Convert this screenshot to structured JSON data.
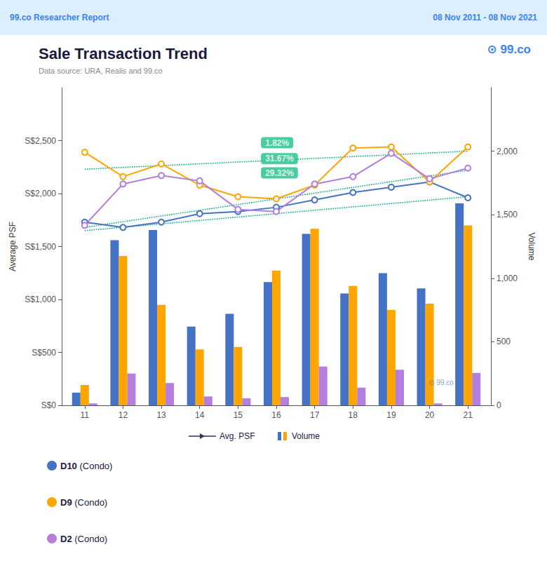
{
  "chart_data": {
    "type": "line",
    "header_left": "99.co Researcher Report",
    "header_right": "08 Nov 2011 - 08 Nov 2021",
    "header_color": "#ddeeff",
    "title": "Sale Transaction Trend",
    "subtitle": "Data source: URA, Realis and 99.co",
    "logo": "⊙ 99.co",
    "watermark": "⊙ 99.co",
    "x": [
      11,
      12,
      13,
      14,
      15,
      16,
      17,
      18,
      19,
      20,
      21
    ],
    "xlim": [
      10.4,
      21.6
    ],
    "xticks": [
      11,
      12,
      13,
      14,
      15,
      16,
      17,
      18,
      19,
      20,
      21
    ],
    "ylabel": "Average PSF",
    "ylim": [
      0,
      3000
    ],
    "yticks": [
      {
        "value": 0,
        "label": "S$0"
      },
      {
        "value": 500,
        "label": "S$500"
      },
      {
        "value": 1000,
        "label": "S$1,000"
      },
      {
        "value": 1500,
        "label": "S$1,500"
      },
      {
        "value": 2000,
        "label": "S$2,000"
      },
      {
        "value": 2500,
        "label": "S$2,500"
      }
    ],
    "y2label": "Volume",
    "y2lim": [
      0,
      2500
    ],
    "y2ticks": [
      0,
      500,
      {
        "value": 1000,
        "label": "1,000"
      },
      {
        "value": 1500,
        "label": "1,500"
      },
      {
        "value": 2000,
        "label": "2,000"
      }
    ],
    "grid": false,
    "legend": "bottom",
    "series_type_labels": {
      "line": "Avg. PSF",
      "bar": "Volume"
    },
    "series": [
      {
        "name": "D10 (Condo)",
        "type": "bar",
        "axis": "y2",
        "color": "#4472C4",
        "values": [
          100,
          1300,
          1380,
          620,
          720,
          970,
          1350,
          880,
          1040,
          920,
          1590
        ]
      },
      {
        "name": "D9 (Condo)",
        "type": "bar",
        "axis": "y2",
        "color": "#FFA500",
        "values": [
          160,
          1175,
          790,
          440,
          460,
          1060,
          1390,
          940,
          750,
          800,
          1415
        ]
      },
      {
        "name": "D2 (Condo)",
        "type": "bar",
        "axis": "y2",
        "color": "#B47EDE",
        "values": [
          15,
          250,
          175,
          70,
          55,
          65,
          305,
          140,
          280,
          15,
          255
        ]
      },
      {
        "type": "line",
        "color": "#00B386",
        "line_style": "dotted",
        "marker": "none",
        "x": [
          11,
          21
        ],
        "values": [
          1650,
          1970
        ]
      },
      {
        "type": "line",
        "color": "#00B386",
        "line_style": "dotted",
        "marker": "none",
        "x": [
          11,
          21
        ],
        "values": [
          2230,
          2400
        ]
      },
      {
        "type": "line",
        "color": "#00B386",
        "line_style": "dotted",
        "marker": "none",
        "x": [
          11,
          21
        ],
        "values": [
          1680,
          2220
        ]
      },
      {
        "name": "D10 (Condo)",
        "type": "line",
        "color": "#4472C4",
        "line_style": "solid",
        "marker": "o",
        "values": [
          1730,
          1680,
          1730,
          1810,
          1830,
          1870,
          1940,
          2010,
          2060,
          2110,
          1960
        ]
      },
      {
        "name": "D9 (Condo)",
        "type": "line",
        "color": "#FFA500",
        "line_style": "solid",
        "marker": "o",
        "values": [
          2390,
          2160,
          2280,
          2080,
          1970,
          1950,
          2080,
          2430,
          2440,
          2110,
          2440
        ]
      },
      {
        "name": "D2 (Condo)",
        "type": "line",
        "color": "#B47EDE",
        "line_style": "solid",
        "marker": "o",
        "values": [
          1700,
          2090,
          2170,
          2120,
          1850,
          1830,
          2090,
          2160,
          2380,
          2140,
          2240
        ]
      }
    ],
    "annotations": [
      {
        "text": "1.82%",
        "x": 15.6,
        "y": 2480,
        "color": "#1DBF8A",
        "text_color": "#ffffff"
      },
      {
        "text": "31.67%",
        "x": 15.6,
        "y": 2330,
        "color": "#1DBF8A",
        "text_color": "#ffffff"
      },
      {
        "text": "29.32%",
        "x": 15.6,
        "y": 2195,
        "color": "#1DBF8A",
        "text_color": "#ffffff"
      }
    ]
  }
}
